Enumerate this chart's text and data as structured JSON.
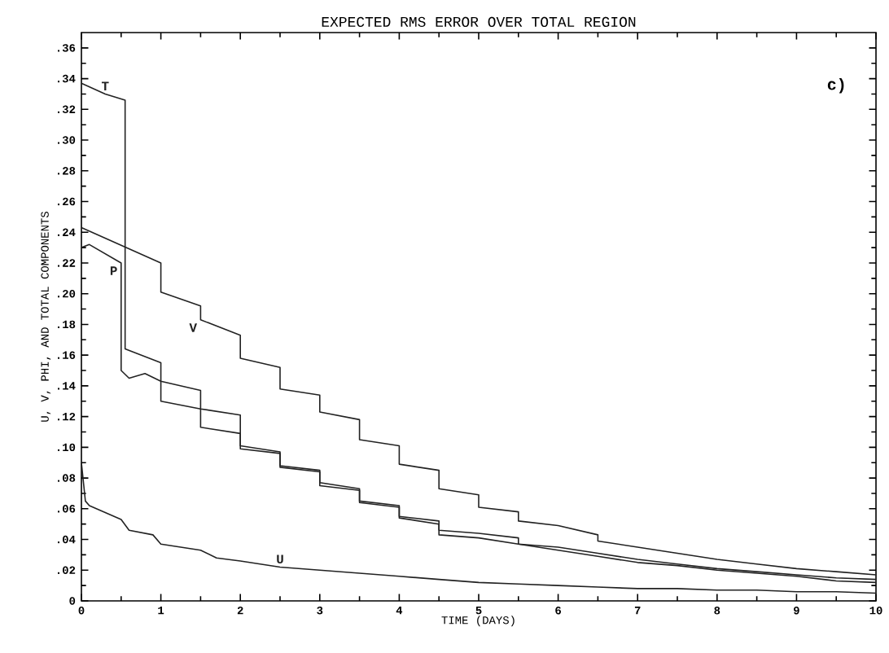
{
  "chart_data": {
    "type": "line",
    "title": "EXPECTED RMS ERROR OVER TOTAL REGION",
    "xlabel": "TIME (DAYS)",
    "ylabel": "U, V, PHI, AND TOTAL COMPONENTS",
    "annotations": [
      "c)"
    ],
    "xlim": [
      0,
      10
    ],
    "xticks": [
      0,
      1,
      2,
      3,
      4,
      5,
      6,
      7,
      8,
      9,
      10
    ],
    "ylim": [
      0,
      0.37
    ],
    "yticks": [
      {
        "value": 0,
        "label": "0"
      },
      {
        "value": 0.02,
        "label": ".02"
      },
      {
        "value": 0.04,
        "label": ".04"
      },
      {
        "value": 0.06,
        "label": ".06"
      },
      {
        "value": 0.08,
        "label": ".08"
      },
      {
        "value": 0.1,
        "label": ".10"
      },
      {
        "value": 0.12,
        "label": ".12"
      },
      {
        "value": 0.14,
        "label": ".14"
      },
      {
        "value": 0.16,
        "label": ".16"
      },
      {
        "value": 0.18,
        "label": ".18"
      },
      {
        "value": 0.2,
        "label": ".20"
      },
      {
        "value": 0.22,
        "label": ".22"
      },
      {
        "value": 0.24,
        "label": ".24"
      },
      {
        "value": 0.26,
        "label": ".26"
      },
      {
        "value": 0.28,
        "label": ".28"
      },
      {
        "value": 0.3,
        "label": ".30"
      },
      {
        "value": 0.32,
        "label": ".32"
      },
      {
        "value": 0.34,
        "label": ".34"
      },
      {
        "value": 0.36,
        "label": ".36"
      }
    ],
    "grid": false,
    "legend": false,
    "series": [
      {
        "name": "V",
        "color": "#222222",
        "x": [
          0,
          1,
          1,
          1.5,
          1.5,
          2,
          2,
          2.5,
          2.5,
          3,
          3,
          3.5,
          3.5,
          4,
          4,
          4.5,
          4.5,
          5,
          5,
          5.5,
          5.5,
          6,
          6.5,
          6.5,
          7,
          7.5,
          8,
          8.5,
          9,
          9.5,
          10
        ],
        "values": [
          0.243,
          0.22,
          0.201,
          0.192,
          0.183,
          0.173,
          0.158,
          0.152,
          0.138,
          0.134,
          0.123,
          0.118,
          0.105,
          0.101,
          0.089,
          0.085,
          0.073,
          0.069,
          0.061,
          0.058,
          0.052,
          0.049,
          0.043,
          0.039,
          0.035,
          0.031,
          0.027,
          0.024,
          0.021,
          0.019,
          0.017
        ]
      },
      {
        "name": "T",
        "color": "#222222",
        "x": [
          0,
          0.3,
          0.55,
          0.55,
          1,
          1,
          1.5,
          2,
          2,
          2.5,
          2.5,
          3,
          3,
          3.5,
          3.5,
          4,
          4,
          4.5,
          4.5,
          5,
          5.5,
          5.5,
          6,
          6.5,
          7,
          7.5,
          8,
          8.5,
          9,
          9.5,
          10
        ],
        "values": [
          0.337,
          0.33,
          0.326,
          0.164,
          0.155,
          0.13,
          0.125,
          0.121,
          0.101,
          0.097,
          0.088,
          0.085,
          0.077,
          0.073,
          0.065,
          0.062,
          0.055,
          0.052,
          0.046,
          0.044,
          0.041,
          0.037,
          0.035,
          0.031,
          0.027,
          0.024,
          0.021,
          0.019,
          0.017,
          0.015,
          0.014
        ]
      },
      {
        "name": "P",
        "color": "#222222",
        "x": [
          0,
          0.1,
          0.5,
          0.5,
          0.6,
          0.8,
          1,
          1.5,
          1.5,
          2,
          2,
          2.5,
          2.5,
          3,
          3,
          3.5,
          3.5,
          4,
          4,
          4.5,
          4.5,
          5,
          5.5,
          6,
          6.5,
          7,
          7.5,
          8,
          8.5,
          9,
          9.5,
          10
        ],
        "values": [
          0.23,
          0.232,
          0.22,
          0.15,
          0.145,
          0.148,
          0.143,
          0.137,
          0.113,
          0.109,
          0.099,
          0.096,
          0.087,
          0.084,
          0.075,
          0.072,
          0.064,
          0.061,
          0.054,
          0.05,
          0.043,
          0.041,
          0.037,
          0.033,
          0.029,
          0.025,
          0.023,
          0.02,
          0.018,
          0.016,
          0.013,
          0.012
        ]
      },
      {
        "name": "U",
        "color": "#222222",
        "x": [
          0,
          0.05,
          0.1,
          0.5,
          0.6,
          0.9,
          1,
          1.5,
          1.7,
          2,
          2.5,
          3,
          3.5,
          4,
          4.5,
          5,
          5.5,
          6,
          6.5,
          7,
          7.5,
          8,
          8.5,
          9,
          9.5,
          10
        ],
        "values": [
          0.09,
          0.065,
          0.062,
          0.053,
          0.046,
          0.043,
          0.037,
          0.033,
          0.028,
          0.026,
          0.022,
          0.02,
          0.018,
          0.016,
          0.014,
          0.012,
          0.011,
          0.01,
          0.009,
          0.008,
          0.008,
          0.007,
          0.007,
          0.006,
          0.006,
          0.005
        ]
      }
    ]
  }
}
